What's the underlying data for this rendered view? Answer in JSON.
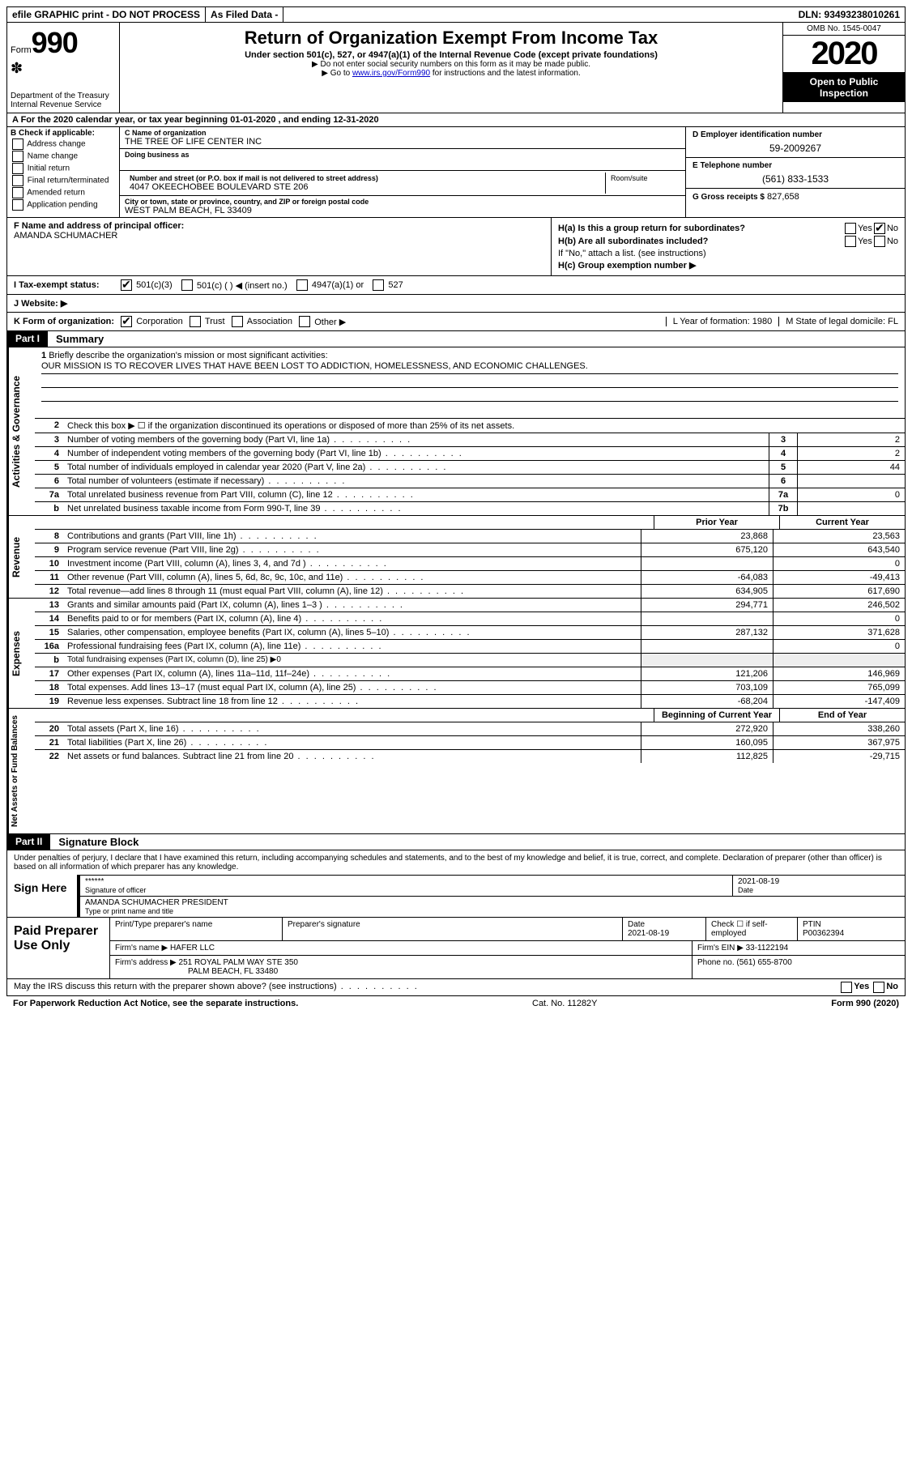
{
  "top": {
    "efile": "efile GRAPHIC print - DO NOT PROCESS",
    "asFiled": "As Filed Data -",
    "dln": "DLN: 93493238010261"
  },
  "header": {
    "form": "Form",
    "formNum": "990",
    "dept": "Department of the Treasury",
    "irs": "Internal Revenue Service",
    "title": "Return of Organization Exempt From Income Tax",
    "sub": "Under section 501(c), 527, or 4947(a)(1) of the Internal Revenue Code (except private foundations)",
    "note1": "▶ Do not enter social security numbers on this form as it may be made public.",
    "note2_pre": "▶ Go to ",
    "note2_link": "www.irs.gov/Form990",
    "note2_post": " for instructions and the latest information.",
    "omb": "OMB No. 1545-0047",
    "year": "2020",
    "open": "Open to Public Inspection"
  },
  "rowA": "A   For the 2020 calendar year, or tax year beginning 01-01-2020   , and ending 12-31-2020",
  "colB": {
    "label": "B Check if applicable:",
    "items": [
      "Address change",
      "Name change",
      "Initial return",
      "Final return/terminated",
      "Amended return",
      "Application pending"
    ]
  },
  "colC": {
    "nameLabel": "C Name of organization",
    "name": "THE TREE OF LIFE CENTER INC",
    "dbaLabel": "Doing business as",
    "streetLabel": "Number and street (or P.O. box if mail is not delivered to street address)",
    "roomLabel": "Room/suite",
    "street": "4047 OKEECHOBEE BOULEVARD STE 206",
    "cityLabel": "City or town, state or province, country, and ZIP or foreign postal code",
    "city": "WEST PALM BEACH, FL  33409"
  },
  "colDE": {
    "dLabel": "D Employer identification number",
    "ein": "59-2009267",
    "eLabel": "E Telephone number",
    "phone": "(561) 833-1533",
    "gLabel": "G Gross receipts $",
    "gross": "827,658"
  },
  "colF": {
    "label": "F  Name and address of principal officer:",
    "name": "AMANDA SCHUMACHER"
  },
  "colH": {
    "ha": "H(a)  Is this a group return for subordinates?",
    "hb": "H(b)  Are all subordinates included?",
    "hbNote": "If \"No,\" attach a list. (see instructions)",
    "hc": "H(c)  Group exemption number ▶",
    "yes": "Yes",
    "no": "No"
  },
  "rowI": {
    "label": "I   Tax-exempt status:",
    "opt1": "501(c)(3)",
    "opt2": "501(c) (   ) ◀ (insert no.)",
    "opt3": "4947(a)(1) or",
    "opt4": "527"
  },
  "rowJ": "J   Website: ▶",
  "rowK": {
    "label": "K Form of organization:",
    "opts": [
      "Corporation",
      "Trust",
      "Association",
      "Other ▶"
    ],
    "l": "L Year of formation: 1980",
    "m": "M State of legal domicile: FL"
  },
  "part1": {
    "tag": "Part I",
    "title": "Summary",
    "line1": "Briefly describe the organization's mission or most significant activities:",
    "mission": "OUR MISSION IS TO RECOVER LIVES THAT HAVE BEEN LOST TO ADDICTION, HOMELESSNESS, AND ECONOMIC CHALLENGES.",
    "line2": "Check this box ▶ ☐ if the organization discontinued its operations or disposed of more than 25% of its net assets.",
    "rows_ag": [
      {
        "n": "3",
        "d": "Number of voting members of the governing body (Part VI, line 1a)",
        "c": "3",
        "v": "2"
      },
      {
        "n": "4",
        "d": "Number of independent voting members of the governing body (Part VI, line 1b)",
        "c": "4",
        "v": "2"
      },
      {
        "n": "5",
        "d": "Total number of individuals employed in calendar year 2020 (Part V, line 2a)",
        "c": "5",
        "v": "44"
      },
      {
        "n": "6",
        "d": "Total number of volunteers (estimate if necessary)",
        "c": "6",
        "v": ""
      },
      {
        "n": "7a",
        "d": "Total unrelated business revenue from Part VIII, column (C), line 12",
        "c": "7a",
        "v": "0"
      },
      {
        "n": "b",
        "d": "Net unrelated business taxable income from Form 990-T, line 39",
        "c": "7b",
        "v": ""
      }
    ],
    "vtab_ag": "Activities & Governance",
    "vtab_rev": "Revenue",
    "vtab_exp": "Expenses",
    "vtab_na": "Net Assets or Fund Balances",
    "head_prior": "Prior Year",
    "head_curr": "Current Year",
    "head_beg": "Beginning of Current Year",
    "head_end": "End of Year",
    "rows_rev": [
      {
        "n": "8",
        "d": "Contributions and grants (Part VIII, line 1h)",
        "p": "23,868",
        "c": "23,563"
      },
      {
        "n": "9",
        "d": "Program service revenue (Part VIII, line 2g)",
        "p": "675,120",
        "c": "643,540"
      },
      {
        "n": "10",
        "d": "Investment income (Part VIII, column (A), lines 3, 4, and 7d )",
        "p": "",
        "c": "0"
      },
      {
        "n": "11",
        "d": "Other revenue (Part VIII, column (A), lines 5, 6d, 8c, 9c, 10c, and 11e)",
        "p": "-64,083",
        "c": "-49,413"
      },
      {
        "n": "12",
        "d": "Total revenue—add lines 8 through 11 (must equal Part VIII, column (A), line 12)",
        "p": "634,905",
        "c": "617,690"
      }
    ],
    "rows_exp": [
      {
        "n": "13",
        "d": "Grants and similar amounts paid (Part IX, column (A), lines 1–3 )",
        "p": "294,771",
        "c": "246,502"
      },
      {
        "n": "14",
        "d": "Benefits paid to or for members (Part IX, column (A), line 4)",
        "p": "",
        "c": "0"
      },
      {
        "n": "15",
        "d": "Salaries, other compensation, employee benefits (Part IX, column (A), lines 5–10)",
        "p": "287,132",
        "c": "371,628"
      },
      {
        "n": "16a",
        "d": "Professional fundraising fees (Part IX, column (A), line 11e)",
        "p": "",
        "c": "0"
      },
      {
        "n": "b",
        "d": "Total fundraising expenses (Part IX, column (D), line 25) ▶0",
        "p": null,
        "c": null
      },
      {
        "n": "17",
        "d": "Other expenses (Part IX, column (A), lines 11a–11d, 11f–24e)",
        "p": "121,206",
        "c": "146,969"
      },
      {
        "n": "18",
        "d": "Total expenses. Add lines 13–17 (must equal Part IX, column (A), line 25)",
        "p": "703,109",
        "c": "765,099"
      },
      {
        "n": "19",
        "d": "Revenue less expenses. Subtract line 18 from line 12",
        "p": "-68,204",
        "c": "-147,409"
      }
    ],
    "rows_na": [
      {
        "n": "20",
        "d": "Total assets (Part X, line 16)",
        "p": "272,920",
        "c": "338,260"
      },
      {
        "n": "21",
        "d": "Total liabilities (Part X, line 26)",
        "p": "160,095",
        "c": "367,975"
      },
      {
        "n": "22",
        "d": "Net assets or fund balances. Subtract line 21 from line 20",
        "p": "112,825",
        "c": "-29,715"
      }
    ]
  },
  "part2": {
    "tag": "Part II",
    "title": "Signature Block",
    "decl": "Under penalties of perjury, I declare that I have examined this return, including accompanying schedules and statements, and to the best of my knowledge and belief, it is true, correct, and complete. Declaration of preparer (other than officer) is based on all information of which preparer has any knowledge.",
    "signHere": "Sign Here",
    "stars": "******",
    "sigLabel": "Signature of officer",
    "sigDate": "2021-08-19",
    "dateLabel": "Date",
    "officerName": "AMANDA SCHUMACHER  PRESIDENT",
    "typeLabel": "Type or print name and title"
  },
  "paid": {
    "title": "Paid Preparer Use Only",
    "prepName": "Print/Type preparer's name",
    "prepSig": "Preparer's signature",
    "date": "Date",
    "dateVal": "2021-08-19",
    "check": "Check ☐ if self-employed",
    "ptin": "PTIN",
    "ptinVal": "P00362394",
    "firmName": "Firm's name    ▶ HAFER LLC",
    "firmEin": "Firm's EIN ▶ 33-1122194",
    "firmAddr1": "Firm's address ▶ 251 ROYAL PALM WAY STE 350",
    "firmAddr2": "PALM BEACH, FL  33480",
    "phone": "Phone no. (561) 655-8700"
  },
  "footer": {
    "q": "May the IRS discuss this return with the preparer shown above? (see instructions)",
    "paperwork": "For Paperwork Reduction Act Notice, see the separate instructions.",
    "cat": "Cat. No. 11282Y",
    "form": "Form 990 (2020)"
  }
}
